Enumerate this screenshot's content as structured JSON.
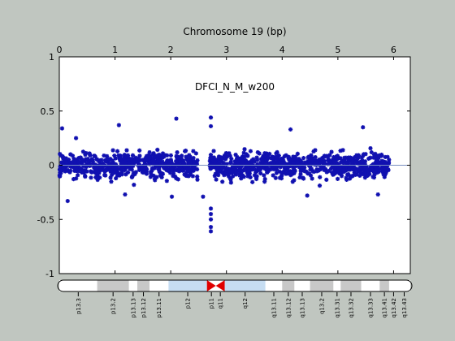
{
  "chart_data": {
    "type": "scatter",
    "title": "Chromosome 19 (bp)",
    "annotation": "DFCI_N_M_w200",
    "x_tick_labels": [
      "0",
      "1",
      "2",
      "3",
      "4",
      "5",
      "6"
    ],
    "x_ticks": [
      0,
      1,
      2,
      3,
      4,
      5,
      6
    ],
    "y_tick_labels": [
      "1",
      "0.5",
      "0",
      "-0.5",
      "-1"
    ],
    "y_ticks": [
      1,
      0.5,
      0,
      -0.5,
      -1
    ],
    "xlim": [
      0,
      6.3
    ],
    "ylim": [
      -1,
      1
    ],
    "grid": false,
    "marker_color": "#1010b0",
    "baseline_color": "#7a8fc0",
    "data_extent": {
      "segments": [
        [
          0.0,
          2.48
        ],
        [
          2.7,
          5.92
        ]
      ],
      "spread_typical": [
        -0.2,
        0.22
      ],
      "outliers": [
        {
          "x": 0.05,
          "y": 0.34
        },
        {
          "x": 0.3,
          "y": 0.25
        },
        {
          "x": 0.15,
          "y": -0.33
        },
        {
          "x": 1.07,
          "y": 0.37
        },
        {
          "x": 1.18,
          "y": -0.27
        },
        {
          "x": 2.1,
          "y": 0.43
        },
        {
          "x": 2.02,
          "y": -0.29
        },
        {
          "x": 2.58,
          "y": -0.29
        },
        {
          "x": 2.72,
          "y": 0.44
        },
        {
          "x": 2.72,
          "y": 0.36
        },
        {
          "x": 2.72,
          "y": -0.4
        },
        {
          "x": 2.72,
          "y": -0.45
        },
        {
          "x": 2.72,
          "y": -0.5
        },
        {
          "x": 2.72,
          "y": -0.57
        },
        {
          "x": 2.72,
          "y": -0.61
        },
        {
          "x": 4.15,
          "y": 0.33
        },
        {
          "x": 4.45,
          "y": -0.28
        },
        {
          "x": 5.45,
          "y": 0.35
        },
        {
          "x": 5.72,
          "y": -0.27
        }
      ]
    },
    "ideogram": {
      "bands": [
        {
          "label": "p13.3",
          "start": 0.0,
          "end": 0.68,
          "stain": "gneg"
        },
        {
          "label": "p13.2",
          "start": 0.68,
          "end": 1.25,
          "stain": "gpos"
        },
        {
          "label": "p13.13",
          "start": 1.25,
          "end": 1.4,
          "stain": "gneg"
        },
        {
          "label": "p13.12",
          "start": 1.4,
          "end": 1.62,
          "stain": "gpos"
        },
        {
          "label": "p13.11",
          "start": 1.62,
          "end": 1.96,
          "stain": "gneg"
        },
        {
          "label": "p12",
          "start": 1.96,
          "end": 2.65,
          "stain": "gvar"
        },
        {
          "label": "p11",
          "start": 2.65,
          "end": 2.81,
          "stain": "acen"
        },
        {
          "label": "q11",
          "start": 2.81,
          "end": 2.97,
          "stain": "acen"
        },
        {
          "label": "q12",
          "start": 2.97,
          "end": 3.7,
          "stain": "gvar"
        },
        {
          "label": "q13.11",
          "start": 3.7,
          "end": 4.0,
          "stain": "gneg"
        },
        {
          "label": "q13.12",
          "start": 4.0,
          "end": 4.22,
          "stain": "gpos"
        },
        {
          "label": "q13.13",
          "start": 4.22,
          "end": 4.5,
          "stain": "gneg"
        },
        {
          "label": "q13.2",
          "start": 4.5,
          "end": 4.92,
          "stain": "gpos"
        },
        {
          "label": "q13.31",
          "start": 4.92,
          "end": 5.05,
          "stain": "gneg"
        },
        {
          "label": "q13.32",
          "start": 5.05,
          "end": 5.42,
          "stain": "gpos"
        },
        {
          "label": "q13.33",
          "start": 5.42,
          "end": 5.75,
          "stain": "gneg"
        },
        {
          "label": "q13.41",
          "start": 5.75,
          "end": 5.92,
          "stain": "gpos"
        },
        {
          "label": "q13.42",
          "start": 5.92,
          "end": 6.08,
          "stain": "gneg"
        },
        {
          "label": "q13.43",
          "start": 6.08,
          "end": 6.3,
          "stain": "gneg"
        }
      ],
      "stain_colors": {
        "gneg": "#ffffff",
        "gpos": "#c8c8c8",
        "gvar": "#c6ddf2",
        "acen": "#e00000"
      }
    }
  }
}
